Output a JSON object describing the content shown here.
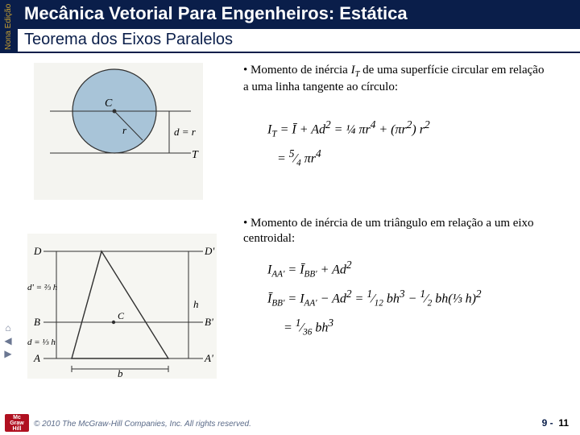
{
  "edition_label": "Nona Edição",
  "header_title": "Mecânica Vetorial Para Engenheiros: Estática",
  "subheader_title": "Teorema dos Eixos Paralelos",
  "bullet1_html": "Momento de inércia <span class='ital'>I<sub>T</sub></span> de uma superfície circular em relação a uma linha tangente ao círculo:",
  "bullet2_html": "Momento de inércia de um triângulo em relação a um eixo centroidal:",
  "copyright": "© 2010 The McGraw-Hill Companies, Inc. All rights reserved.",
  "chapter": "9",
  "page": "11",
  "circle_fig": {
    "bg": "#e8e8e8",
    "circle_fill": "#a8c4d8",
    "stroke": "#303030",
    "label_C": "C",
    "label_r": "r",
    "label_dr": "d = r",
    "label_T": "T"
  },
  "triangle_fig": {
    "bg": "#f0f0f0",
    "stroke": "#303030",
    "D": "D",
    "Dp": "D'",
    "B": "B",
    "Bp": "B'",
    "A": "A",
    "Ap": "A'",
    "C": "C",
    "dprime": "d' = ⅔ h",
    "d": "d = ⅓ h",
    "h": "h",
    "b": "b"
  },
  "formula1_lines": [
    "I<sub>T</sub> = Ī + Ad<sup>2</sup> = ¼ πr<sup>4</sup> + (πr<sup>2</sup>) r<sup>2</sup>",
    "&nbsp;&nbsp;&nbsp;= <sup>5</sup>⁄<sub>4</sub> πr<sup>4</sup>"
  ],
  "formula2_lines": [
    "I<sub>AA'</sub> = Ī<sub>BB'</sub> + Ad<sup>2</sup>",
    "Ī<sub>BB'</sub> = I<sub>AA'</sub> − Ad<sup>2</sup> = <sup>1</sup>⁄<sub>12</sub> bh<sup>3</sup> − <sup>1</sup>⁄<sub>2</sub> bh(⅓ h)<sup>2</sup>",
    "&nbsp;&nbsp;&nbsp;&nbsp;&nbsp;= <sup>1</sup>⁄<sub>36</sub> bh<sup>3</sup>"
  ],
  "colors": {
    "header_bg": "#0a1e4a",
    "accent": "#c8a030",
    "logo_bg": "#b01020"
  }
}
